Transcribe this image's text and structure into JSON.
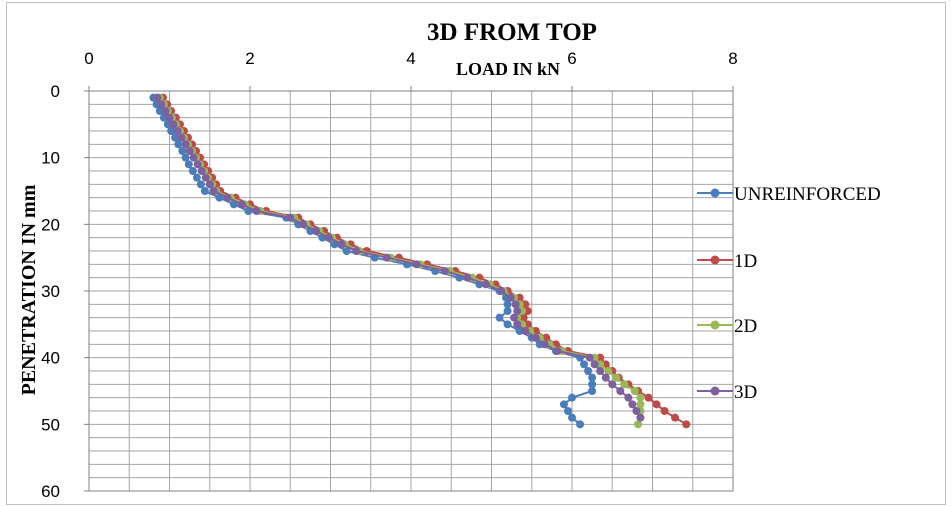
{
  "chart_data": {
    "type": "line",
    "title": "3D FROM TOP",
    "xlabel": "LOAD IN kN",
    "ylabel": "PENETRATION IN mm",
    "xlim": [
      0,
      8
    ],
    "ylim": [
      0,
      60
    ],
    "y_inverted": true,
    "x_axis_position": "top",
    "x_ticks": [
      "0",
      "2",
      "4",
      "6",
      "8"
    ],
    "y_ticks": [
      "0",
      "10",
      "20",
      "30",
      "40",
      "50",
      "60"
    ],
    "grid": true,
    "legend_position": "right",
    "series": [
      {
        "name": "UNREINFORCED",
        "color": "#4a7ebb",
        "points": [
          [
            0.8,
            1
          ],
          [
            0.84,
            2
          ],
          [
            0.88,
            3
          ],
          [
            0.93,
            4
          ],
          [
            0.98,
            5
          ],
          [
            1.02,
            6
          ],
          [
            1.07,
            7
          ],
          [
            1.11,
            8
          ],
          [
            1.16,
            9
          ],
          [
            1.2,
            10
          ],
          [
            1.24,
            11
          ],
          [
            1.29,
            12
          ],
          [
            1.34,
            13
          ],
          [
            1.39,
            14
          ],
          [
            1.44,
            15
          ],
          [
            1.62,
            16
          ],
          [
            1.8,
            17
          ],
          [
            1.98,
            18
          ],
          [
            2.45,
            19
          ],
          [
            2.6,
            20
          ],
          [
            2.75,
            21
          ],
          [
            2.9,
            22
          ],
          [
            3.05,
            23
          ],
          [
            3.2,
            24
          ],
          [
            3.55,
            25
          ],
          [
            3.95,
            26
          ],
          [
            4.3,
            27
          ],
          [
            4.6,
            28
          ],
          [
            4.85,
            29
          ],
          [
            5.1,
            30
          ],
          [
            5.18,
            31
          ],
          [
            5.2,
            32
          ],
          [
            5.2,
            33
          ],
          [
            5.1,
            34
          ],
          [
            5.2,
            35
          ],
          [
            5.35,
            36
          ],
          [
            5.5,
            37
          ],
          [
            5.6,
            38
          ],
          [
            5.8,
            39
          ],
          [
            6.1,
            40
          ],
          [
            6.15,
            41
          ],
          [
            6.2,
            42
          ],
          [
            6.25,
            43
          ],
          [
            6.25,
            44
          ],
          [
            6.25,
            45
          ],
          [
            6.0,
            46
          ],
          [
            5.9,
            47
          ],
          [
            5.95,
            48
          ],
          [
            6.0,
            49
          ],
          [
            6.1,
            50
          ]
        ]
      },
      {
        "name": "1D",
        "color": "#be4b48",
        "points": [
          [
            0.92,
            1
          ],
          [
            0.97,
            2
          ],
          [
            1.02,
            3
          ],
          [
            1.08,
            4
          ],
          [
            1.13,
            5
          ],
          [
            1.18,
            6
          ],
          [
            1.23,
            7
          ],
          [
            1.28,
            8
          ],
          [
            1.33,
            9
          ],
          [
            1.38,
            10
          ],
          [
            1.43,
            11
          ],
          [
            1.48,
            12
          ],
          [
            1.53,
            13
          ],
          [
            1.58,
            14
          ],
          [
            1.63,
            15
          ],
          [
            1.82,
            16
          ],
          [
            2.0,
            17
          ],
          [
            2.2,
            18
          ],
          [
            2.6,
            19
          ],
          [
            2.75,
            20
          ],
          [
            2.92,
            21
          ],
          [
            3.08,
            22
          ],
          [
            3.25,
            23
          ],
          [
            3.45,
            24
          ],
          [
            3.85,
            25
          ],
          [
            4.2,
            26
          ],
          [
            4.55,
            27
          ],
          [
            4.85,
            28
          ],
          [
            5.05,
            29
          ],
          [
            5.2,
            30
          ],
          [
            5.35,
            31
          ],
          [
            5.42,
            32
          ],
          [
            5.45,
            33
          ],
          [
            5.4,
            34
          ],
          [
            5.45,
            35
          ],
          [
            5.55,
            36
          ],
          [
            5.68,
            37
          ],
          [
            5.8,
            38
          ],
          [
            5.95,
            39
          ],
          [
            6.35,
            40
          ],
          [
            6.42,
            41
          ],
          [
            6.5,
            42
          ],
          [
            6.58,
            43
          ],
          [
            6.7,
            44
          ],
          [
            6.82,
            45
          ],
          [
            6.95,
            46
          ],
          [
            7.05,
            47
          ],
          [
            7.15,
            48
          ],
          [
            7.28,
            49
          ],
          [
            7.42,
            50
          ]
        ]
      },
      {
        "name": "2D",
        "color": "#98b954",
        "points": [
          [
            0.88,
            1
          ],
          [
            0.93,
            2
          ],
          [
            0.98,
            3
          ],
          [
            1.03,
            4
          ],
          [
            1.08,
            5
          ],
          [
            1.13,
            6
          ],
          [
            1.18,
            7
          ],
          [
            1.23,
            8
          ],
          [
            1.28,
            9
          ],
          [
            1.33,
            10
          ],
          [
            1.38,
            11
          ],
          [
            1.43,
            12
          ],
          [
            1.48,
            13
          ],
          [
            1.53,
            14
          ],
          [
            1.58,
            15
          ],
          [
            1.76,
            16
          ],
          [
            1.94,
            17
          ],
          [
            2.13,
            18
          ],
          [
            2.55,
            19
          ],
          [
            2.7,
            20
          ],
          [
            2.86,
            21
          ],
          [
            3.02,
            22
          ],
          [
            3.18,
            23
          ],
          [
            3.36,
            24
          ],
          [
            3.75,
            25
          ],
          [
            4.12,
            26
          ],
          [
            4.48,
            27
          ],
          [
            4.76,
            28
          ],
          [
            4.98,
            29
          ],
          [
            5.15,
            30
          ],
          [
            5.28,
            31
          ],
          [
            5.35,
            32
          ],
          [
            5.38,
            33
          ],
          [
            5.32,
            34
          ],
          [
            5.38,
            35
          ],
          [
            5.48,
            36
          ],
          [
            5.6,
            37
          ],
          [
            5.72,
            38
          ],
          [
            5.88,
            39
          ],
          [
            6.28,
            40
          ],
          [
            6.35,
            41
          ],
          [
            6.45,
            42
          ],
          [
            6.55,
            43
          ],
          [
            6.65,
            44
          ],
          [
            6.78,
            45
          ],
          [
            6.85,
            46
          ],
          [
            6.85,
            47
          ],
          [
            6.85,
            48
          ],
          [
            6.85,
            49
          ],
          [
            6.82,
            50
          ]
        ]
      },
      {
        "name": "3D",
        "color": "#7d60a0",
        "points": [
          [
            0.85,
            1
          ],
          [
            0.9,
            2
          ],
          [
            0.95,
            3
          ],
          [
            1.0,
            4
          ],
          [
            1.05,
            5
          ],
          [
            1.1,
            6
          ],
          [
            1.15,
            7
          ],
          [
            1.2,
            8
          ],
          [
            1.25,
            9
          ],
          [
            1.3,
            10
          ],
          [
            1.35,
            11
          ],
          [
            1.4,
            12
          ],
          [
            1.45,
            13
          ],
          [
            1.5,
            14
          ],
          [
            1.55,
            15
          ],
          [
            1.72,
            16
          ],
          [
            1.9,
            17
          ],
          [
            2.08,
            18
          ],
          [
            2.5,
            19
          ],
          [
            2.66,
            20
          ],
          [
            2.82,
            21
          ],
          [
            2.98,
            22
          ],
          [
            3.14,
            23
          ],
          [
            3.32,
            24
          ],
          [
            3.7,
            25
          ],
          [
            4.07,
            26
          ],
          [
            4.42,
            27
          ],
          [
            4.7,
            28
          ],
          [
            4.93,
            29
          ],
          [
            5.12,
            30
          ],
          [
            5.24,
            31
          ],
          [
            5.3,
            32
          ],
          [
            5.32,
            33
          ],
          [
            5.28,
            34
          ],
          [
            5.32,
            35
          ],
          [
            5.42,
            36
          ],
          [
            5.55,
            37
          ],
          [
            5.66,
            38
          ],
          [
            5.82,
            39
          ],
          [
            6.22,
            40
          ],
          [
            6.28,
            41
          ],
          [
            6.35,
            42
          ],
          [
            6.42,
            43
          ],
          [
            6.5,
            44
          ],
          [
            6.6,
            45
          ],
          [
            6.7,
            46
          ],
          [
            6.75,
            47
          ],
          [
            6.8,
            48
          ],
          [
            6.85,
            49
          ]
        ]
      }
    ]
  }
}
